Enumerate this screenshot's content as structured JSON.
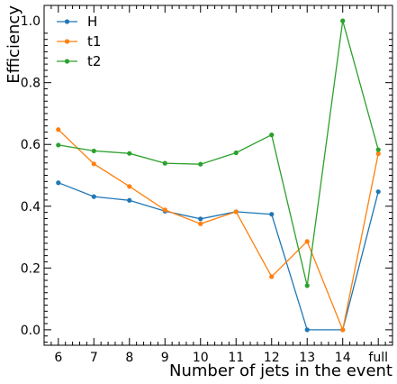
{
  "chart_data": {
    "type": "line",
    "categories": [
      "6",
      "7",
      "8",
      "9",
      "10",
      "11",
      "12",
      "13",
      "14",
      "full"
    ],
    "series": [
      {
        "name": "H",
        "color": "#1f77b4",
        "values": [
          0.476,
          0.431,
          0.419,
          0.384,
          0.359,
          0.382,
          0.374,
          0.0,
          0.0,
          0.447
        ]
      },
      {
        "name": "t1",
        "color": "#ff7f0e",
        "values": [
          0.648,
          0.537,
          0.464,
          0.388,
          0.343,
          0.382,
          0.172,
          0.286,
          0.0,
          0.57
        ]
      },
      {
        "name": "t2",
        "color": "#2ca02c",
        "values": [
          0.598,
          0.579,
          0.571,
          0.539,
          0.536,
          0.573,
          0.631,
          0.143,
          1.0,
          0.583
        ]
      }
    ],
    "title": "",
    "xlabel": "Number of jets in the event",
    "ylabel": "Efficiency",
    "ylim": [
      -0.05,
      1.05
    ],
    "yticks": [
      "0.0",
      "0.2",
      "0.4",
      "0.6",
      "0.8",
      "1.0"
    ],
    "legend": "top-left",
    "grid": false
  }
}
